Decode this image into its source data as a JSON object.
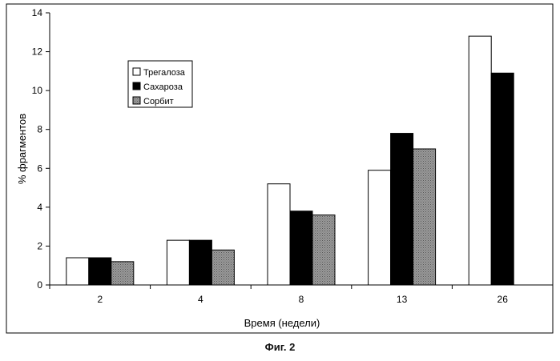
{
  "figure_caption": "Фиг. 2",
  "chart_data": {
    "type": "bar",
    "categories": [
      "2",
      "4",
      "8",
      "13",
      "26"
    ],
    "series": [
      {
        "name": "Трегалоза",
        "values": [
          1.4,
          2.3,
          5.2,
          5.9,
          12.8
        ],
        "fill": "#ffffff"
      },
      {
        "name": "Сахароза",
        "values": [
          1.4,
          2.3,
          3.8,
          7.8,
          10.9
        ],
        "fill": "#000000"
      },
      {
        "name": "Сорбит",
        "values": [
          1.2,
          1.8,
          3.6,
          7.0,
          null
        ],
        "fill": "#8c8c8c"
      }
    ],
    "xlabel": "Время (недели)",
    "ylabel": "% фрагментов",
    "ylim": [
      0,
      14
    ],
    "yticks": [
      "0",
      "2",
      "4",
      "6",
      "8",
      "10",
      "12",
      "14"
    ],
    "grid": false,
    "legend_position": "top-left"
  }
}
